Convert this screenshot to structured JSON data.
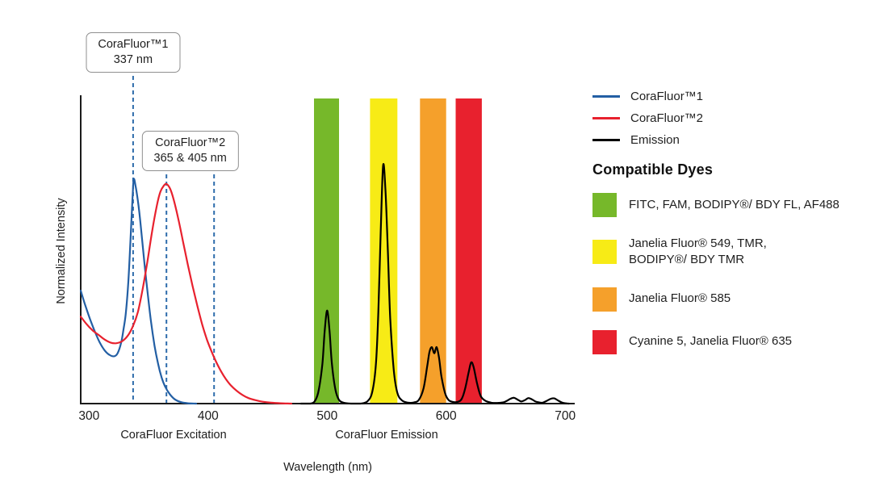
{
  "chart_data": {
    "type": "line",
    "xlabel": "Wavelength (nm)",
    "ylabel": "Normalized Intensity",
    "xlim": [
      293,
      708
    ],
    "ylim": [
      0,
      1.0
    ],
    "xticks": [
      300,
      400,
      500,
      600,
      700
    ],
    "x_group_labels": [
      {
        "text": "CoraFluor Excitation",
        "center_nm": 371
      },
      {
        "text": "CoraFluor Emission",
        "center_nm": 550
      }
    ],
    "bands": [
      {
        "id": "fitc-af488",
        "color": "#76b82a",
        "from_nm": 489,
        "to_nm": 510
      },
      {
        "id": "jf549-tmr",
        "color": "#f7eb16",
        "from_nm": 536,
        "to_nm": 559
      },
      {
        "id": "jf585",
        "color": "#f5a02b",
        "from_nm": 578,
        "to_nm": 600
      },
      {
        "id": "cy5-jf635",
        "color": "#e8212e",
        "from_nm": 608,
        "to_nm": 630
      }
    ],
    "series": [
      {
        "id": "corafluor1-excitation",
        "name": "CoraFluor™1",
        "color": "#235fa4",
        "points": [
          [
            293,
            0.37
          ],
          [
            297,
            0.32
          ],
          [
            301,
            0.275
          ],
          [
            305,
            0.235
          ],
          [
            309,
            0.2
          ],
          [
            313,
            0.175
          ],
          [
            317,
            0.16
          ],
          [
            321,
            0.155
          ],
          [
            324,
            0.165
          ],
          [
            327,
            0.2
          ],
          [
            329,
            0.245
          ],
          [
            331,
            0.3
          ],
          [
            333,
            0.4
          ],
          [
            335,
            0.55
          ],
          [
            336.5,
            0.67
          ],
          [
            337.5,
            0.735
          ],
          [
            339,
            0.715
          ],
          [
            341,
            0.665
          ],
          [
            343,
            0.6
          ],
          [
            346,
            0.48
          ],
          [
            349,
            0.37
          ],
          [
            352,
            0.27
          ],
          [
            355,
            0.19
          ],
          [
            358,
            0.13
          ],
          [
            361,
            0.085
          ],
          [
            364,
            0.055
          ],
          [
            368,
            0.03
          ],
          [
            372,
            0.014
          ],
          [
            377,
            0.005
          ],
          [
            383,
            0.001
          ],
          [
            390,
            0
          ]
        ]
      },
      {
        "id": "corafluor2-excitation",
        "name": "CoraFluor™2",
        "color": "#e8212e",
        "points": [
          [
            293,
            0.285
          ],
          [
            298,
            0.26
          ],
          [
            303,
            0.24
          ],
          [
            308,
            0.225
          ],
          [
            313,
            0.21
          ],
          [
            318,
            0.2
          ],
          [
            323,
            0.198
          ],
          [
            328,
            0.205
          ],
          [
            333,
            0.225
          ],
          [
            337,
            0.255
          ],
          [
            341,
            0.3
          ],
          [
            345,
            0.375
          ],
          [
            349,
            0.465
          ],
          [
            353,
            0.565
          ],
          [
            357,
            0.65
          ],
          [
            360,
            0.695
          ],
          [
            363,
            0.715
          ],
          [
            365,
            0.72
          ],
          [
            368,
            0.705
          ],
          [
            371,
            0.67
          ],
          [
            375,
            0.605
          ],
          [
            379,
            0.53
          ],
          [
            383,
            0.455
          ],
          [
            387,
            0.385
          ],
          [
            391,
            0.32
          ],
          [
            395,
            0.26
          ],
          [
            399,
            0.21
          ],
          [
            403,
            0.17
          ],
          [
            407,
            0.135
          ],
          [
            411,
            0.105
          ],
          [
            415,
            0.08
          ],
          [
            419,
            0.06
          ],
          [
            424,
            0.042
          ],
          [
            429,
            0.028
          ],
          [
            434,
            0.018
          ],
          [
            440,
            0.011
          ],
          [
            446,
            0.006
          ],
          [
            453,
            0.003
          ],
          [
            461,
            0.001
          ],
          [
            470,
            0
          ]
        ]
      },
      {
        "id": "emission",
        "name": "Emission",
        "color": "#000000",
        "points": [
          [
            478,
            0
          ],
          [
            486,
            0
          ],
          [
            490,
            0.01
          ],
          [
            493,
            0.045
          ],
          [
            496,
            0.13
          ],
          [
            498,
            0.24
          ],
          [
            500,
            0.305
          ],
          [
            502,
            0.24
          ],
          [
            504,
            0.13
          ],
          [
            507,
            0.045
          ],
          [
            510,
            0.012
          ],
          [
            514,
            0.003
          ],
          [
            520,
            0
          ],
          [
            528,
            0
          ],
          [
            534,
            0.008
          ],
          [
            538,
            0.04
          ],
          [
            541,
            0.13
          ],
          [
            543,
            0.3
          ],
          [
            545,
            0.56
          ],
          [
            547,
            0.78
          ],
          [
            549,
            0.7
          ],
          [
            551,
            0.5
          ],
          [
            553,
            0.28
          ],
          [
            556,
            0.11
          ],
          [
            559,
            0.035
          ],
          [
            563,
            0.01
          ],
          [
            568,
            0.003
          ],
          [
            573,
            0.004
          ],
          [
            577,
            0.012
          ],
          [
            581,
            0.05
          ],
          [
            584,
            0.12
          ],
          [
            586,
            0.17
          ],
          [
            588,
            0.185
          ],
          [
            590,
            0.165
          ],
          [
            592,
            0.185
          ],
          [
            594,
            0.15
          ],
          [
            596,
            0.09
          ],
          [
            599,
            0.035
          ],
          [
            602,
            0.012
          ],
          [
            606,
            0.005
          ],
          [
            610,
            0.006
          ],
          [
            613,
            0.015
          ],
          [
            616,
            0.05
          ],
          [
            619,
            0.105
          ],
          [
            621,
            0.135
          ],
          [
            623,
            0.12
          ],
          [
            626,
            0.065
          ],
          [
            629,
            0.025
          ],
          [
            633,
            0.009
          ],
          [
            638,
            0.003
          ],
          [
            643,
            0.002
          ],
          [
            648,
            0.004
          ],
          [
            651,
            0.009
          ],
          [
            654,
            0.016
          ],
          [
            657,
            0.019
          ],
          [
            660,
            0.013
          ],
          [
            663,
            0.007
          ],
          [
            666,
            0.011
          ],
          [
            669,
            0.018
          ],
          [
            672,
            0.014
          ],
          [
            675,
            0.007
          ],
          [
            678,
            0.004
          ],
          [
            681,
            0.003
          ],
          [
            684,
            0.008
          ],
          [
            688,
            0.016
          ],
          [
            691,
            0.017
          ],
          [
            694,
            0.01
          ],
          [
            697,
            0.004
          ],
          [
            700,
            0.001
          ],
          [
            703,
            0
          ]
        ]
      }
    ],
    "callouts": [
      {
        "lines": [
          "CoraFluor™1",
          "337 nm"
        ],
        "marks_nm": [
          337
        ]
      },
      {
        "lines": [
          "CoraFluor™2",
          "365 & 405 nm"
        ],
        "marks_nm": [
          365,
          405
        ]
      }
    ],
    "dash_color": "#2e6cab"
  },
  "legend": {
    "line_items": [
      {
        "label": "CoraFluor™1",
        "color": "#235fa4"
      },
      {
        "label": "CoraFluor™2",
        "color": "#e8212e"
      },
      {
        "label": "Emission",
        "color": "#000000"
      }
    ],
    "dyes_heading": "Compatible Dyes",
    "dye_items": [
      {
        "label": "FITC, FAM, BODIPY®/ BDY FL, AF488",
        "color": "#76b82a"
      },
      {
        "label": "Janelia Fluor® 549, TMR,\nBODIPY®/ BDY TMR",
        "color": "#f7eb16"
      },
      {
        "label": "Janelia Fluor® 585",
        "color": "#f5a02b"
      },
      {
        "label": "Cyanine 5, Janelia Fluor® 635",
        "color": "#e8212e"
      }
    ]
  }
}
